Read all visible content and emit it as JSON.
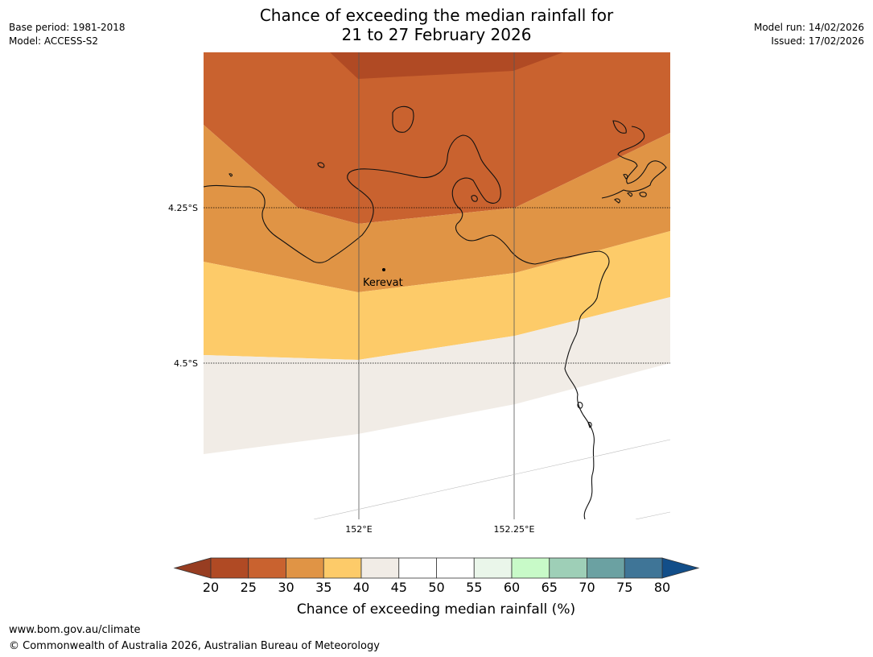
{
  "title": {
    "line1": "Chance of exceeding the median rainfall for",
    "line2": "21 to 27 February 2026"
  },
  "meta_left": {
    "base_period": "Base period: 1981-2018",
    "model": "Model: ACCESS-S2"
  },
  "meta_right": {
    "model_run": "Model run: 14/02/2026",
    "issued": "Issued: 17/02/2026"
  },
  "map": {
    "lat_labels": [
      "4.25°S",
      "4.5°S"
    ],
    "lon_labels": [
      "152°E",
      "152.25°E"
    ],
    "place": {
      "name": "Kerevat"
    },
    "band_colors": [
      "#b04a24",
      "#c9622f",
      "#e09445",
      "#fdcb69",
      "#f1ece6"
    ]
  },
  "colorbar": {
    "ticks": [
      "20",
      "25",
      "30",
      "35",
      "40",
      "45",
      "50",
      "55",
      "60",
      "65",
      "70",
      "75",
      "80"
    ],
    "colors": [
      "#b04a24",
      "#c9622f",
      "#e09445",
      "#fdcb69",
      "#f1ece6",
      "#ffffff",
      "#ffffff",
      "#eaf6ea",
      "#c8fac8",
      "#9ecfb7",
      "#6ba1a2",
      "#3f7597"
    ],
    "under_color": "#973d21",
    "over_color": "#124e89",
    "label": "Chance of exceeding median rainfall (%)"
  },
  "footer": {
    "url": "www.bom.gov.au/climate",
    "copyright": "© Commonwealth of Australia 2026, Australian Bureau of Meteorology"
  }
}
